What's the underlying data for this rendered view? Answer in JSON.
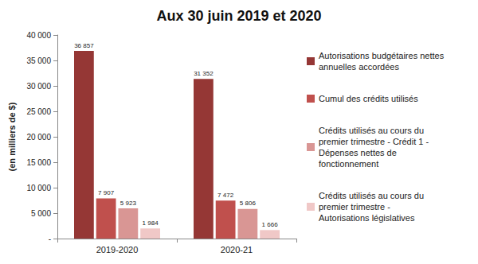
{
  "chart_data": {
    "type": "bar",
    "title": "Aux 30 juin 2019 et 2020",
    "y_label": "(en milliers de $)",
    "categories": [
      "2019-2020",
      "2020-21"
    ],
    "series": [
      {
        "name": "Autorisations budgétaires nettes annuelles accordées",
        "color": "#953735",
        "values": [
          36857,
          31352
        ],
        "value_labels": [
          "36 857",
          "31 352"
        ]
      },
      {
        "name": "Cumul des crédits utilisés",
        "color": "#c0504d",
        "values": [
          7907,
          7472
        ],
        "value_labels": [
          "7 907",
          "7 472"
        ]
      },
      {
        "name": "Crédits utilisés au cours du premier trimestre - Crédit 1 - Dépenses nettes de fonctionnement",
        "color": "#d99694",
        "values": [
          5923,
          5806
        ],
        "value_labels": [
          "5 923",
          "5 806"
        ]
      },
      {
        "name": "Crédits utilisés au cours du premier trimestre - Autorisations législatives",
        "color": "#f0c8c7",
        "values": [
          1984,
          1666
        ],
        "value_labels": [
          "1 984",
          "1 666"
        ]
      }
    ],
    "ylim": [
      0,
      40000
    ],
    "yticks": [
      {
        "value": 0,
        "label": "-"
      },
      {
        "value": 5000,
        "label": "5 000"
      },
      {
        "value": 10000,
        "label": "10 000"
      },
      {
        "value": 15000,
        "label": "15 000"
      },
      {
        "value": 20000,
        "label": "20 000"
      },
      {
        "value": 25000,
        "label": "25 000"
      },
      {
        "value": 30000,
        "label": "30 000"
      },
      {
        "value": 35000,
        "label": "35 000"
      },
      {
        "value": 40000,
        "label": "40 000"
      }
    ],
    "grid": false,
    "legend": "right",
    "data_labels": true
  }
}
